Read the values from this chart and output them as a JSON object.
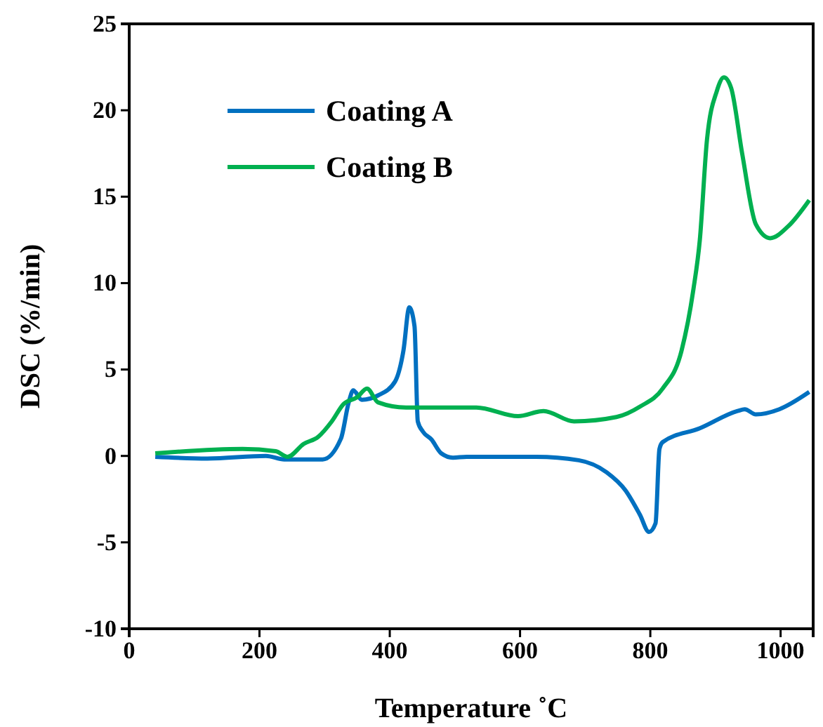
{
  "chart_data": {
    "type": "line",
    "xlabel": "Temperature ˚C",
    "ylabel": "DSC (%/min)",
    "xlim": [
      0,
      1050
    ],
    "ylim": [
      -10,
      25
    ],
    "xticks": [
      0,
      200,
      400,
      600,
      800,
      1000
    ],
    "yticks": [
      -10,
      -5,
      0,
      5,
      10,
      15,
      20,
      25
    ],
    "grid": false,
    "legend": "top left",
    "marker": "none",
    "line_style": "solid",
    "series": [
      {
        "name": "Coating A",
        "color": "#0070c0",
        "x": [
          40,
          120,
          210,
          238,
          297,
          325,
          337,
          344,
          357,
          382,
          408,
          421,
          430,
          438,
          443,
          451,
          464,
          479,
          497,
          518,
          625,
          690,
          733,
          762,
          784,
          798,
          808,
          814,
          819,
          876,
          934,
          945,
          962,
          998,
          1044
        ],
        "values": [
          -0.05,
          -0.15,
          0,
          -0.2,
          -0.2,
          1.0,
          3.1,
          3.8,
          3.25,
          3.5,
          4.3,
          6.1,
          8.6,
          7.5,
          2.0,
          1.4,
          0.95,
          0.15,
          -0.1,
          -0.05,
          -0.05,
          -0.25,
          -0.95,
          -2.0,
          -3.4,
          -4.4,
          -3.9,
          0.4,
          0.8,
          1.6,
          2.6,
          2.7,
          2.4,
          2.7,
          3.7
        ]
      },
      {
        "name": "Coating B",
        "color": "#00b050",
        "x": [
          40,
          174,
          225,
          243,
          268,
          290,
          311,
          329,
          350,
          365,
          382,
          425,
          533,
          597,
          636,
          683,
          748,
          784,
          819,
          848,
          866,
          876,
          887,
          902,
          913,
          924,
          941,
          962,
          984,
          1012,
          1044
        ],
        "values": [
          0.15,
          0.4,
          0.27,
          -0.05,
          0.7,
          1.1,
          2.0,
          3.0,
          3.4,
          3.9,
          3.1,
          2.8,
          2.8,
          2.3,
          2.6,
          2.0,
          2.25,
          2.85,
          3.9,
          6.1,
          9.6,
          12.5,
          18.3,
          21.1,
          21.9,
          21.3,
          17.5,
          13.4,
          12.6,
          13.3,
          14.8
        ]
      }
    ]
  }
}
